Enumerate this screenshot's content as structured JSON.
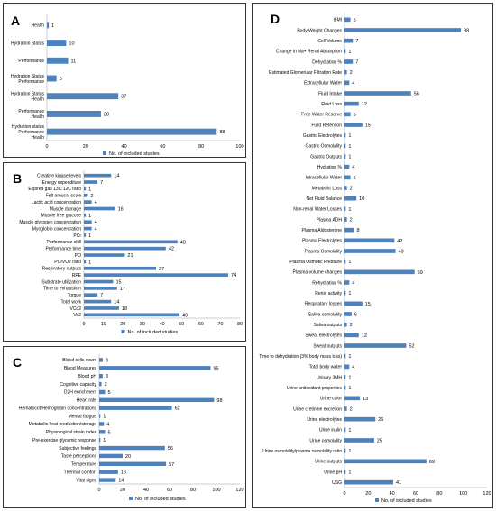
{
  "chart_data": [
    {
      "panel": "A",
      "type": "bar",
      "orientation": "horizontal",
      "categories": [
        "Health",
        "Hydration Status",
        "Performance",
        "Hydration Status\nPerformance",
        "Hydration Status\nHealth",
        "Performance\nHealth",
        "Hydration status\nPerformance\nHealth"
      ],
      "values": [
        1,
        10,
        11,
        5,
        37,
        28,
        88
      ],
      "xlim": [
        0,
        100
      ],
      "xticks": [
        0,
        20,
        40,
        60,
        80,
        100
      ],
      "legend": "No. of included studies",
      "legend_position": "bottom",
      "color": "#4f81bd"
    },
    {
      "panel": "B",
      "type": "bar",
      "orientation": "horizontal",
      "categories": [
        "Creatine kinase levels",
        "Energy expenditure",
        "Expired gas 13C:12C ratio",
        "Felt arousal scale",
        "Lactic acid concentration",
        "Muscle damage",
        "Muscle free glucose",
        "Muscle glycogen concentration",
        "Myoglobin concentration",
        "PCr",
        "Performance skill",
        "Performance time",
        "PO",
        "PO/VO2 ratio",
        "Respiratory outputs",
        "RPE",
        "Substrate utilization",
        "Time to exhaustion",
        "Torque",
        "Total work",
        "VCo2",
        "Vo2"
      ],
      "values": [
        14,
        7,
        1,
        2,
        4,
        16,
        1,
        4,
        4,
        1,
        48,
        42,
        21,
        1,
        37,
        74,
        15,
        17,
        7,
        14,
        18,
        49
      ],
      "xlim": [
        0,
        80
      ],
      "xticks": [
        0,
        10,
        20,
        30,
        40,
        50,
        60,
        70,
        80
      ],
      "legend": "No. of included studies",
      "legend_position": "bottom",
      "color": "#4f81bd"
    },
    {
      "panel": "C",
      "type": "bar",
      "orientation": "horizontal",
      "categories": [
        "Blood cells count",
        "Blood Measures",
        "Blood pH",
        "Cognitive capacity",
        "D2H enrichment",
        "Heart rate",
        "Hematocrit/Hemoglobin concentrations",
        "Mental fatigue",
        "Metabolic heat production/storage",
        "Physiological strain index",
        "Pre-exercise glycemic response",
        "Subjective feelings",
        "Taste perceptions",
        "Temperature",
        "Thermal comfort",
        "Vital signs"
      ],
      "values": [
        3,
        95,
        3,
        2,
        5,
        98,
        62,
        1,
        4,
        5,
        1,
        56,
        20,
        57,
        16,
        14
      ],
      "xlim": [
        0,
        120
      ],
      "xticks": [
        0,
        20,
        40,
        60,
        80,
        100,
        120
      ],
      "legend": "No. of included studies",
      "legend_position": "bottom",
      "color": "#4f81bd"
    },
    {
      "panel": "D",
      "type": "bar",
      "orientation": "horizontal",
      "categories": [
        "BMI",
        "Body Weight Changes",
        "Cell Volume",
        "Change in Na+ Renal Absorption",
        "Dehydration %",
        "Estimated Glomerular Filtration Rate",
        "Extracellular Water",
        "Fluid Intake",
        "Fluid Loss",
        "Free Water Reserve",
        "Fuild Retention",
        "Gastric Electrolytes",
        "Gastric Osmolality",
        "Gastric Outputs",
        "Hydration %",
        "Intracellular Water",
        "Metabolic Loss",
        "Net Fluid Balance",
        "Non-renal Water Losses",
        "Plasma ADH",
        "Plasma Aldosterone",
        "Plasma Electrolytes",
        "Plasma Osmolality",
        "Plasma Osmotic Pressure",
        "Plasma volume changes",
        "Rehydration %",
        "Renin activity",
        "Respiratory losses",
        "Saliva osmolality",
        "Saliva outputs",
        "Sweat electrolytes",
        "Sweat outputs",
        "Time to dehydration (3% body mass loss)",
        "Total body water",
        "Urinary 3MH",
        "Urine antioxidant properties",
        "Urine color",
        "Urine cretinine excretion",
        "Urine electrolytes",
        "Urine inulin",
        "Urine osmolality",
        "Urine osmolality/plasma osmolality ratio",
        "Urine outputs",
        "Urine pH",
        "USG"
      ],
      "values": [
        5,
        98,
        7,
        1,
        7,
        2,
        4,
        56,
        12,
        5,
        15,
        1,
        1,
        1,
        4,
        5,
        2,
        10,
        1,
        2,
        8,
        42,
        43,
        1,
        59,
        4,
        1,
        15,
        6,
        2,
        12,
        52,
        1,
        4,
        1,
        1,
        13,
        2,
        26,
        1,
        25,
        1,
        69,
        1,
        41
      ],
      "xlim": [
        0,
        120
      ],
      "xticks": [
        0,
        20,
        40,
        60,
        80,
        100,
        120
      ],
      "legend": "No. of included studies",
      "legend_position": "bottom",
      "color": "#4f81bd"
    }
  ]
}
